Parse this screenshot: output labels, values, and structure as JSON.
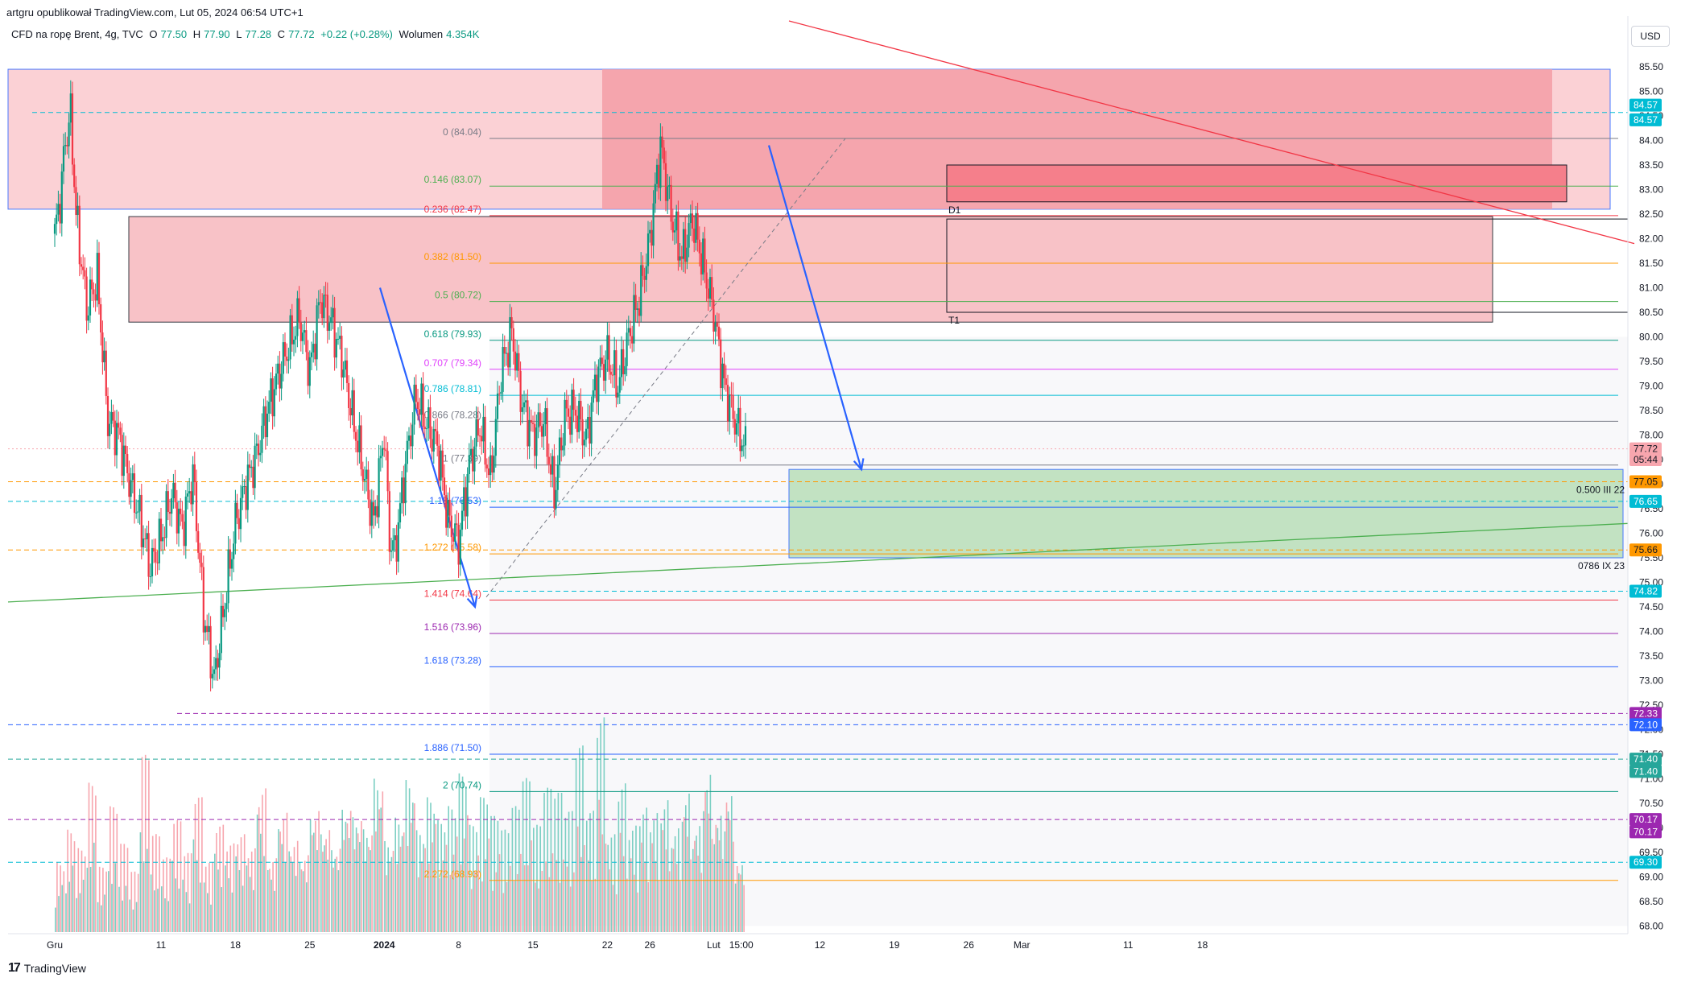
{
  "header": {
    "published_by": "artgru opublikował TradingView.com, Lut 05, 2024 06:54 UTC+1"
  },
  "legend": {
    "symbol": "CFD na ropę Brent, 4g, TVC",
    "open_label": "O",
    "open": "77.50",
    "high_label": "H",
    "high": "77.90",
    "low_label": "L",
    "low": "77.28",
    "close_label": "C",
    "close": "77.72",
    "change": "+0.22 (+0.28%)",
    "volume_label": "Wolumen",
    "volume": "4.354K"
  },
  "currency": "USD",
  "footer": {
    "brand": "TradingView",
    "logo": "17"
  },
  "colors": {
    "up": "#089981",
    "down": "#f23645",
    "fib_orange": "#ff9800",
    "zone_red": "#f7a6ae",
    "zone_green": "#b9dfb9",
    "arrow_blue": "#2962ff"
  },
  "chart_data": {
    "type": "candlestick",
    "y_axis": {
      "ylim": [
        67.8,
        85.8
      ],
      "ticks": [
        "68.00",
        "68.50",
        "69.00",
        "69.50",
        "70.00",
        "70.50",
        "71.00",
        "71.50",
        "72.00",
        "72.50",
        "73.00",
        "73.50",
        "74.00",
        "74.50",
        "75.00",
        "75.50",
        "76.00",
        "76.50",
        "77.00",
        "77.50",
        "78.00",
        "78.50",
        "79.00",
        "79.50",
        "80.00",
        "80.50",
        "81.00",
        "81.50",
        "82.00",
        "82.50",
        "83.00",
        "83.50",
        "84.00",
        "84.50",
        "85.00",
        "85.50"
      ]
    },
    "x_axis": {
      "ticks": [
        {
          "label": "Gru",
          "day": 0
        },
        {
          "label": "11",
          "day": 10
        },
        {
          "label": "18",
          "day": 17
        },
        {
          "label": "25",
          "day": 24
        },
        {
          "label": "2024",
          "day": 31
        },
        {
          "label": "8",
          "day": 38
        },
        {
          "label": "15",
          "day": 45
        },
        {
          "label": "22",
          "day": 52
        },
        {
          "label": "26",
          "day": 56
        },
        {
          "label": "Lut",
          "day": 62
        },
        {
          "label": "15:00",
          "day": 64.6
        },
        {
          "label": "12",
          "day": 72
        },
        {
          "label": "19",
          "day": 79
        },
        {
          "label": "26",
          "day": 86
        },
        {
          "label": "Mar",
          "day": 91
        },
        {
          "label": "11",
          "day": 101
        },
        {
          "label": "18",
          "day": 108
        }
      ]
    },
    "price_path": [
      [
        0,
        82.1
      ],
      [
        0.5,
        82.8
      ],
      [
        1,
        84.0
      ],
      [
        1.5,
        84.5
      ],
      [
        2,
        82.5
      ],
      [
        3,
        80.6
      ],
      [
        4,
        81.2
      ],
      [
        5,
        78.3
      ],
      [
        6,
        78.0
      ],
      [
        7,
        77.1
      ],
      [
        8,
        76.3
      ],
      [
        9,
        75.3
      ],
      [
        10,
        75.9
      ],
      [
        11,
        76.8
      ],
      [
        12,
        76.1
      ],
      [
        13,
        77.2
      ],
      [
        14,
        74.4
      ],
      [
        15,
        73.0
      ],
      [
        16,
        74.6
      ],
      [
        17,
        76.2
      ],
      [
        18,
        77.0
      ],
      [
        19,
        77.6
      ],
      [
        20,
        78.5
      ],
      [
        21,
        79.2
      ],
      [
        22,
        79.8
      ],
      [
        23,
        80.4
      ],
      [
        24,
        79.3
      ],
      [
        25,
        80.8
      ],
      [
        26,
        80.3
      ],
      [
        27,
        79.6
      ],
      [
        28,
        78.4
      ],
      [
        29,
        77.3
      ],
      [
        30,
        76.2
      ],
      [
        31,
        78.1
      ],
      [
        31.5,
        75.9
      ],
      [
        32,
        75.6
      ],
      [
        33,
        77.4
      ],
      [
        34,
        78.8
      ],
      [
        35,
        78.2
      ],
      [
        36,
        77.8
      ],
      [
        37,
        76.3
      ],
      [
        38,
        75.8
      ],
      [
        39,
        77.4
      ],
      [
        40,
        78.2
      ],
      [
        41,
        77.1
      ],
      [
        42,
        79.3
      ],
      [
        43,
        80.1
      ],
      [
        44,
        78.6
      ],
      [
        45,
        78.0
      ],
      [
        46,
        78.3
      ],
      [
        47,
        76.8
      ],
      [
        48,
        78.4
      ],
      [
        49,
        78.5
      ],
      [
        50,
        77.9
      ],
      [
        51,
        79.2
      ],
      [
        52,
        79.6
      ],
      [
        53,
        79.0
      ],
      [
        54,
        80.0
      ],
      [
        55,
        80.8
      ],
      [
        56,
        82.0
      ],
      [
        57,
        83.9
      ],
      [
        58,
        82.5
      ],
      [
        59,
        81.6
      ],
      [
        60,
        82.4
      ],
      [
        61,
        81.5
      ],
      [
        62,
        80.5
      ],
      [
        63,
        79.0
      ],
      [
        64,
        78.3
      ],
      [
        65,
        77.7
      ]
    ],
    "volume": {
      "max": 5000,
      "values": [
        1500,
        2200,
        1800,
        3200,
        1400,
        2700,
        1900,
        1300,
        3800,
        2100,
        1600,
        2400,
        1700,
        2900,
        1500,
        2300,
        1900,
        2100,
        1800,
        3100,
        1600,
        2600,
        2000,
        1700,
        2700,
        2300,
        1900,
        2800,
        2600,
        2300,
        3400,
        2000,
        2500,
        3300,
        2200,
        2900,
        2400,
        2700,
        3400,
        2300,
        2900,
        2500,
        2200,
        2700,
        3300,
        2300,
        3100,
        3000,
        2600,
        4000,
        2600,
        4600,
        2100,
        3200,
        2300,
        2700,
        2600,
        2900,
        2300,
        3100,
        2400,
        3600,
        2700,
        3200,
        1600
      ]
    },
    "fib_levels": [
      {
        "ratio": "0",
        "price": "84.04",
        "color": "#787b86"
      },
      {
        "ratio": "0.146",
        "price": "83.07",
        "color": "#4caf50"
      },
      {
        "ratio": "0.236",
        "price": "82.47",
        "color": "#f23645"
      },
      {
        "ratio": "0.382",
        "price": "81.50",
        "color": "#ff9800"
      },
      {
        "ratio": "0.5",
        "price": "80.72",
        "color": "#4caf50"
      },
      {
        "ratio": "0.618",
        "price": "79.93",
        "color": "#089981"
      },
      {
        "ratio": "0.707",
        "price": "79.34",
        "color": "#e040fb"
      },
      {
        "ratio": "0.786",
        "price": "78.81",
        "color": "#00bcd4"
      },
      {
        "ratio": "0.866",
        "price": "78.28",
        "color": "#787b86"
      },
      {
        "ratio": "1",
        "price": "77.39",
        "color": "#787b86"
      },
      {
        "ratio": "1.13",
        "price": "76.53",
        "color": "#2962ff"
      },
      {
        "ratio": "1.272",
        "price": "75.58",
        "color": "#ff9800"
      },
      {
        "ratio": "1.414",
        "price": "74.64",
        "color": "#f23645"
      },
      {
        "ratio": "1.516",
        "price": "73.96",
        "color": "#9c27b0"
      },
      {
        "ratio": "1.618",
        "price": "73.28",
        "color": "#2962ff"
      },
      {
        "ratio": "1.886",
        "price": "71.50",
        "color": "#2962ff"
      },
      {
        "ratio": "2",
        "price": "70.74",
        "color": "#089981"
      },
      {
        "ratio": "2.272",
        "price": "68.93",
        "color": "#ff9800"
      }
    ],
    "price_badges": [
      {
        "value": "84.57",
        "color": "#00bcd4"
      },
      {
        "value": "84.57",
        "color": "#00bcd4"
      },
      {
        "value": "77.72",
        "color": "#f7a6ae"
      },
      {
        "value": "05:44",
        "color": "#f7a6ae"
      },
      {
        "value": "77.05",
        "color": "#ff9800"
      },
      {
        "value": "76.65",
        "color": "#00bcd4"
      },
      {
        "value": "75.66",
        "color": "#ff9800"
      },
      {
        "value": "74.82",
        "color": "#00bcd4"
      },
      {
        "value": "72.33",
        "color": "#9c27b0"
      },
      {
        "value": "72.10",
        "color": "#2962ff"
      },
      {
        "value": "71.40",
        "color": "#26a69a"
      },
      {
        "value": "71.40",
        "color": "#26a69a"
      },
      {
        "value": "70.17",
        "color": "#9c27b0"
      },
      {
        "value": "70.17",
        "color": "#9c27b0"
      },
      {
        "value": "69.30",
        "color": "#00bcd4"
      }
    ],
    "annotations": [
      {
        "text": "D1"
      },
      {
        "text": "T1"
      },
      {
        "text": "0.500 III 22"
      },
      {
        "text": "0786 IX 23"
      }
    ]
  }
}
